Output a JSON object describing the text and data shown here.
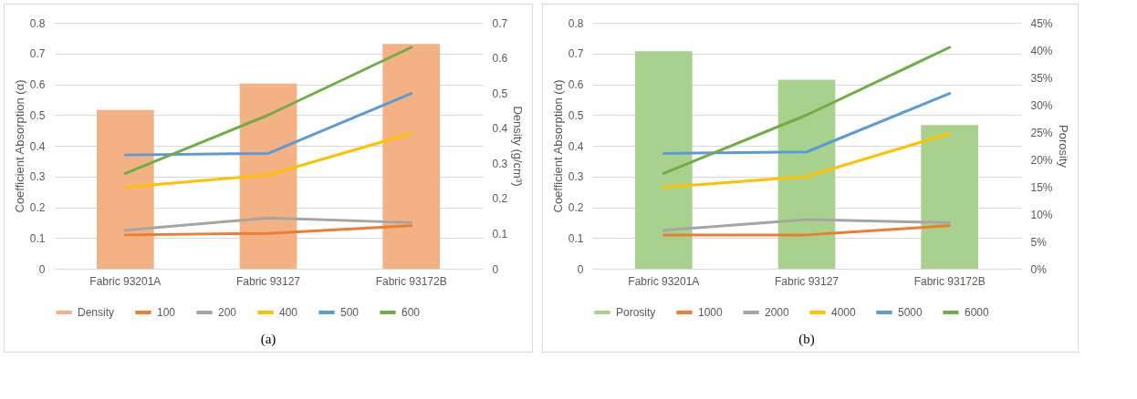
{
  "chart_data": [
    {
      "type": "line",
      "categories": [
        "Fabric 93201A",
        "Fabric 93127",
        "Fabric 93172B"
      ],
      "ylabel": "Coefficient Absorption (α)",
      "y2label": "Density (g/cm³)",
      "ylim": [
        0,
        0.8
      ],
      "yticks": [
        0,
        0.1,
        0.2,
        0.3,
        0.4,
        0.5,
        0.6,
        0.7,
        0.8
      ],
      "y2lim": [
        0,
        0.7
      ],
      "y2ticks": [
        0,
        0.1,
        0.2,
        0.3,
        0.4,
        0.5,
        0.6,
        0.7
      ],
      "grid": "y",
      "legend": "bottom",
      "annotations": [
        "(a)"
      ],
      "series": [
        {
          "name": "Density",
          "type": "bar",
          "axis": "y2",
          "color": "#f4b183",
          "values": [
            0.452,
            0.527,
            0.64
          ]
        },
        {
          "name": "100",
          "color": "#ed7d31",
          "values": [
            0.11,
            0.115,
            0.14
          ]
        },
        {
          "name": "200",
          "color": "#a5a5a5",
          "values": [
            0.125,
            0.165,
            0.15
          ]
        },
        {
          "name": "400",
          "color": "#ffc000",
          "values": [
            0.265,
            0.305,
            0.44
          ]
        },
        {
          "name": "500",
          "color": "#5b9bd5",
          "values": [
            0.37,
            0.375,
            0.57
          ]
        },
        {
          "name": "600",
          "color": "#70ad47",
          "values": [
            0.31,
            0.5,
            0.72
          ]
        }
      ]
    },
    {
      "type": "line",
      "categories": [
        "Fabric 93201A",
        "Fabric 93127",
        "Fabric 93172B"
      ],
      "ylabel": "Coefficient Absorption (α)",
      "y2label": "Porosity",
      "ylim": [
        0,
        0.8
      ],
      "yticks": [
        0,
        0.1,
        0.2,
        0.3,
        0.4,
        0.5,
        0.6,
        0.7,
        0.8
      ],
      "y2lim": [
        0,
        45
      ],
      "y2ticks": [
        {
          "value": 0,
          "label": "0%"
        },
        {
          "value": 5,
          "label": "5%"
        },
        {
          "value": 10,
          "label": "10%"
        },
        {
          "value": 15,
          "label": "15%"
        },
        {
          "value": 20,
          "label": "20%"
        },
        {
          "value": 25,
          "label": "25%"
        },
        {
          "value": 30,
          "label": "30%"
        },
        {
          "value": 35,
          "label": "35%"
        },
        {
          "value": 40,
          "label": "40%"
        },
        {
          "value": 45,
          "label": "45%"
        }
      ],
      "grid": "y",
      "legend": "bottom",
      "annotations": [
        "(b)"
      ],
      "series": [
        {
          "name": "Porosity",
          "type": "bar",
          "axis": "y2",
          "color": "#a9d18e",
          "values": [
            39.8,
            34.6,
            26.3
          ]
        },
        {
          "name": "1000",
          "color": "#ed7d31",
          "values": [
            0.11,
            0.11,
            0.14
          ]
        },
        {
          "name": "2000",
          "color": "#a5a5a5",
          "values": [
            0.125,
            0.16,
            0.15
          ]
        },
        {
          "name": "4000",
          "color": "#ffc000",
          "values": [
            0.265,
            0.3,
            0.44
          ]
        },
        {
          "name": "5000",
          "color": "#5b9bd5",
          "values": [
            0.375,
            0.38,
            0.57
          ]
        },
        {
          "name": "6000",
          "color": "#70ad47",
          "values": [
            0.31,
            0.5,
            0.72
          ]
        }
      ]
    }
  ]
}
